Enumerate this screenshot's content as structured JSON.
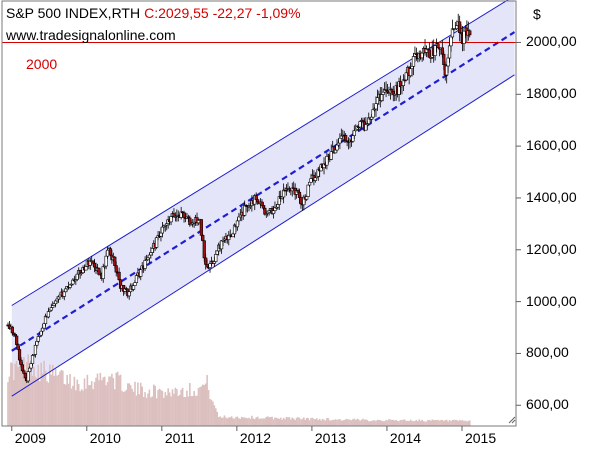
{
  "header": {
    "symbol": "S&P 500 INDEX,RTH",
    "quote": "C:2029,55 -22,27 -1,09%",
    "website": "www.tradesignalonline.com",
    "currency": "$"
  },
  "colors": {
    "background": "#ffffff",
    "channel_fill": "#dcdcf8",
    "channel_line": "#1f1fd0",
    "midline": "#1f1fd0",
    "reference_line": "#d40000",
    "bull_candle": "#ffffff",
    "bear_candle": "#a01010",
    "volume": "#dcc0c0",
    "axis_text": "#000000"
  },
  "chart_data": {
    "type": "candlestick",
    "title": "S&P 500 INDEX,RTH",
    "xlabel": "",
    "ylabel": "$",
    "x_ticks": [
      "2009",
      "2010",
      "2011",
      "2012",
      "2013",
      "2014",
      "2015"
    ],
    "y_ticks": [
      "600,00",
      "800,00",
      "1000,00",
      "1200,00",
      "1400,00",
      "1600,00",
      "1800,00",
      "2000,00"
    ],
    "x_range": [
      2008.87,
      2015.72
    ],
    "y_range": [
      520,
      2160
    ],
    "y_axis_side": "right",
    "last_close": 2029.55,
    "change": -22.27,
    "change_pct": -1.09,
    "reference_line": {
      "value": 2000,
      "label": "2000"
    },
    "channel": {
      "upper": [
        [
          2009.0,
          985
        ],
        [
          2015.7,
          2180
        ]
      ],
      "middle": [
        [
          2009.0,
          810
        ],
        [
          2015.7,
          2040
        ]
      ],
      "lower": [
        [
          2009.0,
          635
        ],
        [
          2015.7,
          1875
        ]
      ]
    },
    "price_anchors": [
      [
        2008.95,
        910
      ],
      [
        2009.05,
        860
      ],
      [
        2009.12,
        760
      ],
      [
        2009.19,
        690
      ],
      [
        2009.3,
        810
      ],
      [
        2009.45,
        940
      ],
      [
        2009.6,
        1000
      ],
      [
        2009.75,
        1060
      ],
      [
        2009.9,
        1110
      ],
      [
        2010.05,
        1160
      ],
      [
        2010.2,
        1100
      ],
      [
        2010.28,
        1200
      ],
      [
        2010.36,
        1160
      ],
      [
        2010.45,
        1060
      ],
      [
        2010.55,
        1030
      ],
      [
        2010.7,
        1110
      ],
      [
        2010.85,
        1190
      ],
      [
        2011.0,
        1270
      ],
      [
        2011.15,
        1330
      ],
      [
        2011.28,
        1340
      ],
      [
        2011.38,
        1300
      ],
      [
        2011.5,
        1320
      ],
      [
        2011.58,
        1150
      ],
      [
        2011.66,
        1140
      ],
      [
        2011.78,
        1220
      ],
      [
        2011.9,
        1250
      ],
      [
        2012.0,
        1300
      ],
      [
        2012.15,
        1380
      ],
      [
        2012.28,
        1400
      ],
      [
        2012.4,
        1330
      ],
      [
        2012.5,
        1360
      ],
      [
        2012.65,
        1430
      ],
      [
        2012.75,
        1440
      ],
      [
        2012.88,
        1380
      ],
      [
        2013.0,
        1470
      ],
      [
        2013.15,
        1530
      ],
      [
        2013.3,
        1590
      ],
      [
        2013.4,
        1650
      ],
      [
        2013.48,
        1600
      ],
      [
        2013.6,
        1690
      ],
      [
        2013.72,
        1680
      ],
      [
        2013.85,
        1770
      ],
      [
        2014.0,
        1830
      ],
      [
        2014.1,
        1800
      ],
      [
        2014.25,
        1870
      ],
      [
        2014.4,
        1950
      ],
      [
        2014.52,
        1970
      ],
      [
        2014.6,
        1960
      ],
      [
        2014.7,
        1990
      ],
      [
        2014.78,
        1870
      ],
      [
        2014.87,
        2060
      ],
      [
        2014.95,
        2080
      ],
      [
        2015.0,
        2000
      ],
      [
        2015.05,
        2040
      ],
      [
        2015.1,
        2029.55
      ]
    ],
    "volume_profile": [
      [
        2009.0,
        0.9
      ],
      [
        2009.2,
        1.0
      ],
      [
        2009.5,
        0.85
      ],
      [
        2009.9,
        0.7
      ],
      [
        2010.3,
        0.8
      ],
      [
        2010.6,
        0.6
      ],
      [
        2011.0,
        0.55
      ],
      [
        2011.5,
        0.6
      ],
      [
        2011.6,
        0.7
      ],
      [
        2011.75,
        0.15
      ],
      [
        2012.5,
        0.13
      ],
      [
        2013.5,
        0.1
      ],
      [
        2014.5,
        0.09
      ],
      [
        2015.1,
        0.08
      ]
    ]
  }
}
